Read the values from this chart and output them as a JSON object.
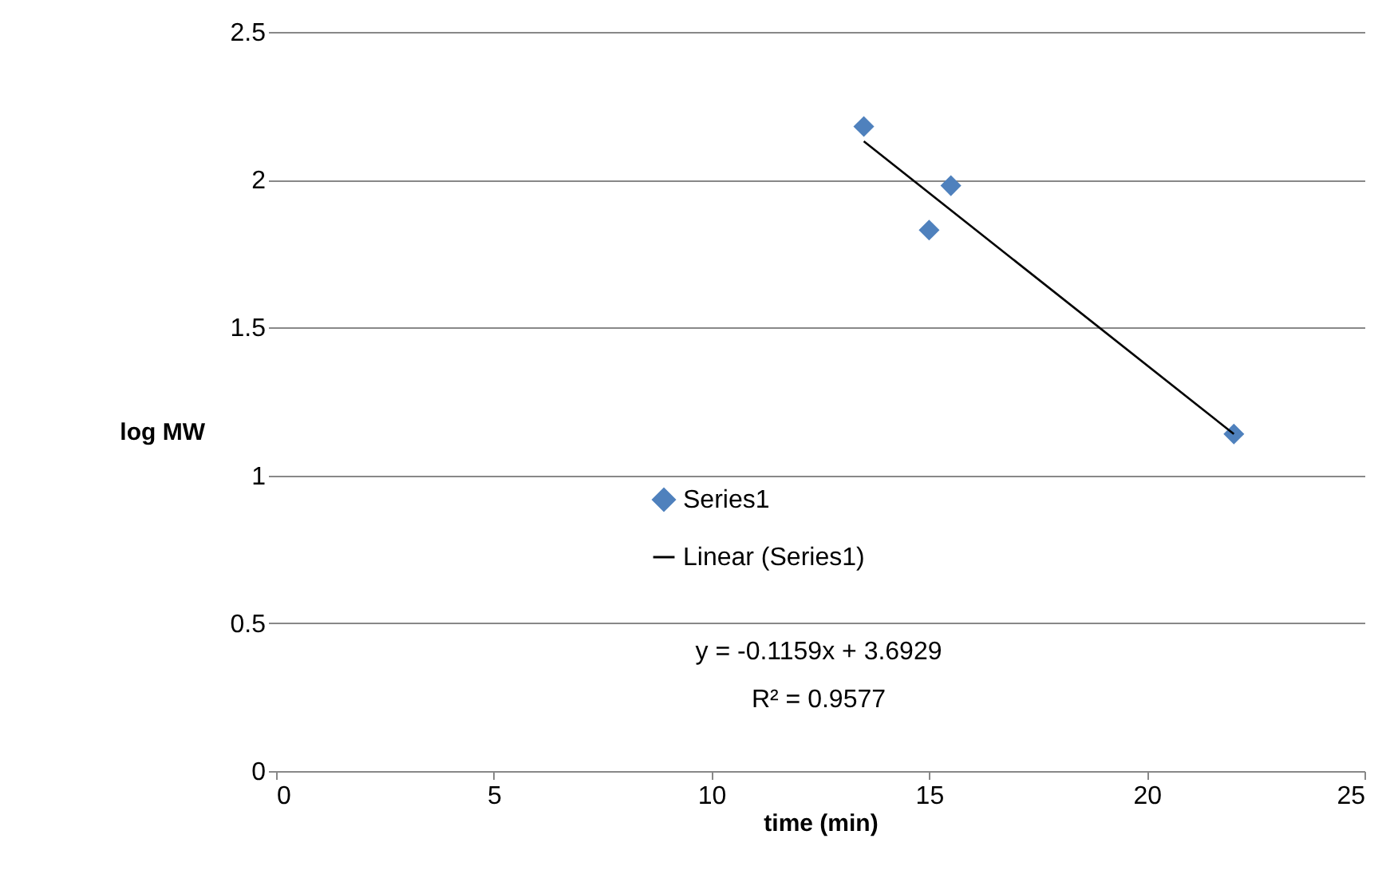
{
  "chart_data": {
    "type": "scatter",
    "xlabel": "time (min)",
    "ylabel": "log MW",
    "xlim": [
      0,
      25
    ],
    "xticks": [
      0,
      5,
      10,
      15,
      20,
      25
    ],
    "ylim": [
      0,
      2.5
    ],
    "yticks": [
      0,
      0.5,
      1,
      1.5,
      2,
      2.5
    ],
    "grid": "y",
    "legend": "bottom",
    "series": [
      {
        "name": "Series1",
        "color": "#4f81bd",
        "marker": "diamond",
        "x": [
          13.5,
          15,
          15.5,
          22
        ],
        "values": [
          2.18,
          1.83,
          1.98,
          1.14
        ]
      },
      {
        "name": "Linear (Series1)",
        "type": "line",
        "color": "#000000",
        "x": [
          13.5,
          22
        ],
        "values": [
          2.13,
          1.14
        ]
      }
    ],
    "annotations": [
      "y = -0.1159x + 3.6929",
      "R² = 0.9577"
    ]
  }
}
